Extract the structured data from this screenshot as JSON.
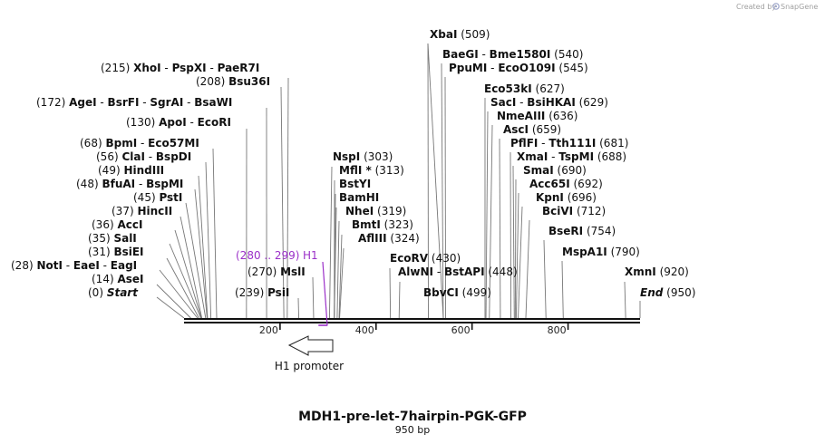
{
  "credit": {
    "text": "Created by",
    "brand": "SnapGene"
  },
  "map": {
    "title": "MDH1-pre-let-7hairpin-PGK-GFP",
    "length_label": "950 bp",
    "length_bp": 950
  },
  "ticks": [
    {
      "bp": 200,
      "label": "200"
    },
    {
      "bp": 400,
      "label": "400"
    },
    {
      "bp": 600,
      "label": "600"
    },
    {
      "bp": 800,
      "label": "800"
    }
  ],
  "primer": {
    "label": "H1",
    "range": "(280 .. 299)",
    "start": 280,
    "end": 299,
    "color": "#9b30c8"
  },
  "feature": {
    "label": "H1 promoter",
    "direction": "reverse"
  },
  "sites": [
    {
      "id": "start",
      "pos": 0,
      "pos_label": "(0)",
      "names": [
        "Start"
      ],
      "italic": true
    },
    {
      "id": "asei",
      "pos": 14,
      "pos_label": "(14)",
      "names": [
        "AseI"
      ]
    },
    {
      "id": "noti",
      "pos": 28,
      "pos_label": "(28)",
      "names": [
        "NotI",
        "EaeI",
        "EagI"
      ]
    },
    {
      "id": "bsiei",
      "pos": 31,
      "pos_label": "(31)",
      "names": [
        "BsiEI"
      ]
    },
    {
      "id": "sali",
      "pos": 35,
      "pos_label": "(35)",
      "names": [
        "SalI"
      ]
    },
    {
      "id": "acci",
      "pos": 36,
      "pos_label": "(36)",
      "names": [
        "AccI"
      ]
    },
    {
      "id": "hincii",
      "pos": 37,
      "pos_label": "(37)",
      "names": [
        "HincII"
      ]
    },
    {
      "id": "psti",
      "pos": 45,
      "pos_label": "(45)",
      "names": [
        "PstI"
      ]
    },
    {
      "id": "bfuai",
      "pos": 48,
      "pos_label": "(48)",
      "names": [
        "BfuAI",
        "BspMI"
      ]
    },
    {
      "id": "hindiii",
      "pos": 49,
      "pos_label": "(49)",
      "names": [
        "HindIII"
      ]
    },
    {
      "id": "clai",
      "pos": 56,
      "pos_label": "(56)",
      "names": [
        "ClaI",
        "BspDI"
      ]
    },
    {
      "id": "bpmi",
      "pos": 68,
      "pos_label": "(68)",
      "names": [
        "BpmI",
        "Eco57MI"
      ]
    },
    {
      "id": "apoi",
      "pos": 130,
      "pos_label": "(130)",
      "names": [
        "ApoI",
        "EcoRI"
      ]
    },
    {
      "id": "agei",
      "pos": 172,
      "pos_label": "(172)",
      "names": [
        "AgeI",
        "BsrFI",
        "SgrAI",
        "BsaWI"
      ]
    },
    {
      "id": "bsu36i",
      "pos": 208,
      "pos_label": "(208)",
      "names": [
        "Bsu36I"
      ]
    },
    {
      "id": "xhoi",
      "pos": 215,
      "pos_label": "(215)",
      "names": [
        "XhoI",
        "PspXI",
        "PaeR7I"
      ]
    },
    {
      "id": "psii",
      "pos": 239,
      "pos_label": "(239)",
      "names": [
        "PsiI"
      ]
    },
    {
      "id": "msli",
      "pos": 270,
      "pos_label": "(270)",
      "names": [
        "MslI"
      ]
    },
    {
      "id": "nspi",
      "pos": 303,
      "pos_label": "(303)",
      "names": [
        "NspI"
      ]
    },
    {
      "id": "mfli",
      "pos": 313,
      "pos_label": "(313)",
      "names": [
        "MflI *"
      ]
    },
    {
      "id": "bstyi",
      "pos": 313,
      "pos_label": "",
      "names": [
        "BstYI"
      ]
    },
    {
      "id": "bamhi",
      "pos": 313,
      "pos_label": "",
      "names": [
        "BamHI"
      ]
    },
    {
      "id": "nhei",
      "pos": 319,
      "pos_label": "(319)",
      "names": [
        "NheI"
      ]
    },
    {
      "id": "bmti",
      "pos": 323,
      "pos_label": "(323)",
      "names": [
        "BmtI"
      ]
    },
    {
      "id": "afliii",
      "pos": 324,
      "pos_label": "(324)",
      "names": [
        "AflIII"
      ]
    },
    {
      "id": "ecorv",
      "pos": 430,
      "pos_label": "(430)",
      "names": [
        "EcoRV"
      ]
    },
    {
      "id": "alwni",
      "pos": 448,
      "pos_label": "(448)",
      "names": [
        "AlwNI",
        "BstAPI"
      ]
    },
    {
      "id": "bbvci",
      "pos": 499,
      "pos_label": "(499)",
      "names": [
        "BbvCI"
      ]
    },
    {
      "id": "xbai",
      "pos": 509,
      "pos_label": "(509)",
      "names": [
        "XbaI"
      ]
    },
    {
      "id": "baegi",
      "pos": 540,
      "pos_label": "(540)",
      "names": [
        "BaeGI",
        "Bme1580I"
      ]
    },
    {
      "id": "ppumi",
      "pos": 545,
      "pos_label": "(545)",
      "names": [
        "PpuMI",
        "EcoO109I"
      ]
    },
    {
      "id": "eco53ki",
      "pos": 627,
      "pos_label": "(627)",
      "names": [
        "Eco53kI"
      ]
    },
    {
      "id": "saci",
      "pos": 629,
      "pos_label": "(629)",
      "names": [
        "SacI",
        "BsiHKAI"
      ]
    },
    {
      "id": "nmeaiii",
      "pos": 636,
      "pos_label": "(636)",
      "names": [
        "NmeAIII"
      ]
    },
    {
      "id": "asci",
      "pos": 659,
      "pos_label": "(659)",
      "names": [
        "AscI"
      ]
    },
    {
      "id": "pflfi",
      "pos": 681,
      "pos_label": "(681)",
      "names": [
        "PflFI",
        "Tth111I"
      ]
    },
    {
      "id": "xmai",
      "pos": 688,
      "pos_label": "(688)",
      "names": [
        "XmaI",
        "TspMI"
      ]
    },
    {
      "id": "smai",
      "pos": 690,
      "pos_label": "(690)",
      "names": [
        "SmaI"
      ]
    },
    {
      "id": "acc65i",
      "pos": 692,
      "pos_label": "(692)",
      "names": [
        "Acc65I"
      ]
    },
    {
      "id": "kpni",
      "pos": 696,
      "pos_label": "(696)",
      "names": [
        "KpnI"
      ]
    },
    {
      "id": "bcivi",
      "pos": 712,
      "pos_label": "(712)",
      "names": [
        "BciVI"
      ]
    },
    {
      "id": "beri",
      "pos": 754,
      "pos_label": "(754)",
      "names": [
        "BseRI"
      ]
    },
    {
      "id": "mspa1i",
      "pos": 790,
      "pos_label": "(790)",
      "names": [
        "MspA1I"
      ]
    },
    {
      "id": "xmni",
      "pos": 920,
      "pos_label": "(920)",
      "names": [
        "XmnI"
      ]
    },
    {
      "id": "end",
      "pos": 950,
      "pos_label": "(950)",
      "names": [
        "End"
      ],
      "italic": true
    }
  ]
}
